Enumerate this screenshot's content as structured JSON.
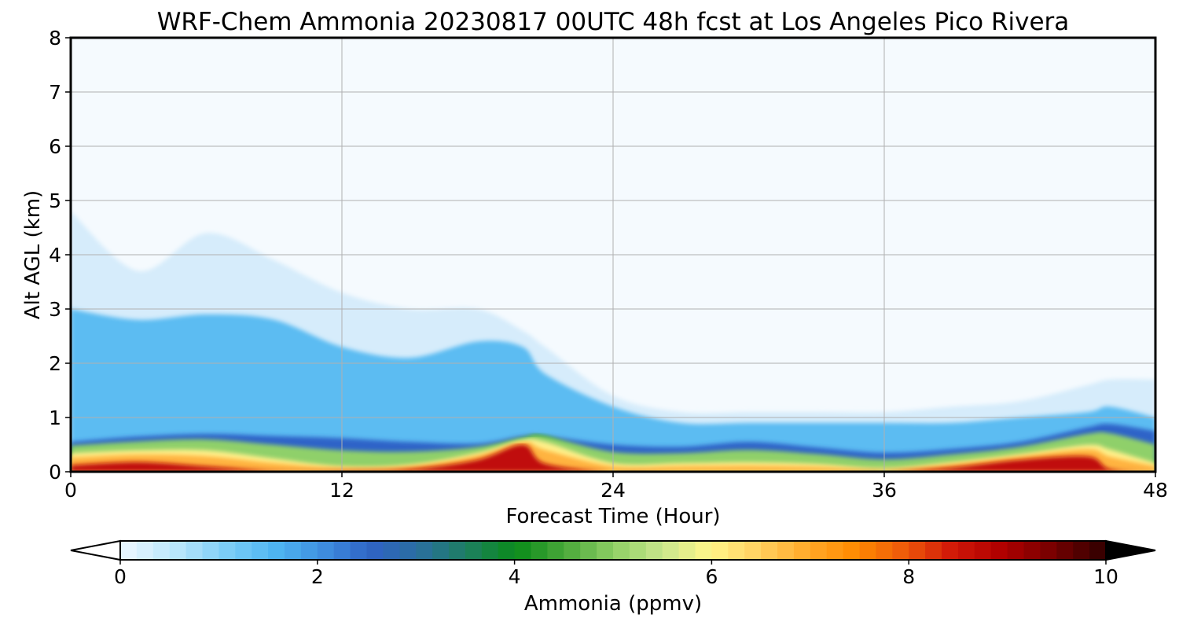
{
  "chart_data": {
    "type": "heatmap",
    "title": "WRF-Chem Ammonia  20230817 00UTC 48h fcst at Los Angeles Pico Rivera",
    "xlabel": "Forecast Time (Hour)",
    "ylabel": "Alt AGL (km)",
    "xlim": [
      0,
      48
    ],
    "ylim": [
      0,
      8
    ],
    "xticks": [
      0,
      12,
      24,
      36,
      48
    ],
    "yticks": [
      0,
      1,
      2,
      3,
      4,
      5,
      6,
      7,
      8
    ],
    "grid": true,
    "colorbar": {
      "label": "Ammonia  (ppmv)",
      "range": [
        0,
        10
      ],
      "ticks": [
        0,
        2,
        4,
        6,
        8,
        10
      ],
      "extend": "both",
      "colors": [
        "#ffffff",
        "#e6f5fe",
        "#b9e6fb",
        "#7ecef6",
        "#4fb6f2",
        "#3f8fe0",
        "#2f63c4",
        "#2a6f9f",
        "#1d7f5f",
        "#0a8c1a",
        "#4aa83a",
        "#8ecf64",
        "#c8e68c",
        "#fff68a",
        "#ffd060",
        "#ffaa2a",
        "#ff8a00",
        "#ee5a0a",
        "#d01808",
        "#b00000",
        "#7a0000",
        "#3a0000",
        "#000000"
      ]
    },
    "profiles": {
      "x": [
        0,
        3,
        6,
        9,
        12,
        15,
        18,
        20,
        21,
        24,
        27,
        30,
        33,
        36,
        39,
        42,
        45,
        46,
        48
      ],
      "top_trace_km": [
        4.8,
        3.7,
        4.4,
        3.9,
        3.3,
        3.0,
        3.0,
        2.6,
        2.3,
        1.4,
        1.1,
        1.1,
        1.1,
        1.1,
        1.2,
        1.3,
        1.6,
        1.7,
        1.7
      ],
      "blue_core_top_km": [
        3.0,
        2.8,
        2.9,
        2.8,
        2.3,
        2.1,
        2.4,
        2.3,
        1.8,
        1.2,
        0.9,
        0.9,
        0.9,
        0.9,
        0.9,
        1.0,
        1.1,
        1.2,
        1.0
      ],
      "green_layer_top_km": [
        0.55,
        0.65,
        0.7,
        0.66,
        0.62,
        0.55,
        0.52,
        0.66,
        0.66,
        0.5,
        0.46,
        0.55,
        0.45,
        0.35,
        0.42,
        0.55,
        0.82,
        0.88,
        0.75
      ],
      "warm_layer_top_km": [
        0.4,
        0.45,
        0.47,
        0.3,
        0.12,
        0.15,
        0.38,
        0.6,
        0.65,
        0.2,
        0.2,
        0.22,
        0.18,
        0.08,
        0.2,
        0.35,
        0.55,
        0.5,
        0.2
      ],
      "red_core_top_km": [
        0.12,
        0.18,
        0.1,
        0.02,
        0.02,
        0.05,
        0.22,
        0.5,
        0.15,
        0.0,
        0.0,
        0.0,
        0.0,
        0.0,
        0.08,
        0.22,
        0.28,
        0.05,
        0.0
      ]
    }
  }
}
